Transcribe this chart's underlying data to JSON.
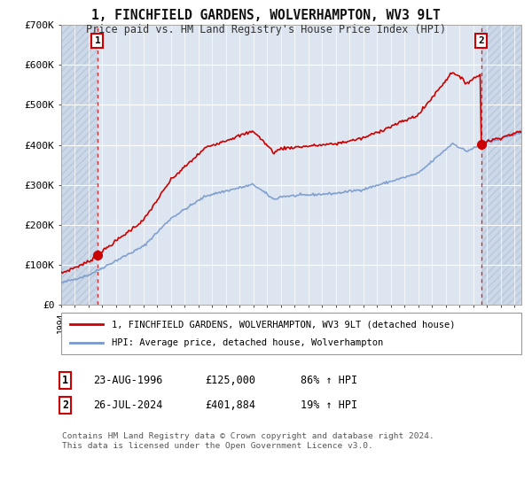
{
  "title_line1": "1, FINCHFIELD GARDENS, WOLVERHAMPTON, WV3 9LT",
  "title_line2": "Price paid vs. HM Land Registry's House Price Index (HPI)",
  "ylim": [
    0,
    700000
  ],
  "yticks": [
    0,
    100000,
    200000,
    300000,
    400000,
    500000,
    600000,
    700000
  ],
  "ytick_labels": [
    "£0",
    "£100K",
    "£200K",
    "£300K",
    "£400K",
    "£500K",
    "£600K",
    "£700K"
  ],
  "hpi_color": "#7799cc",
  "price_color": "#cc0000",
  "sale1_date": 1996.644,
  "sale1_price": 125000,
  "sale2_date": 2024.569,
  "sale2_price": 401884,
  "legend_label1": "1, FINCHFIELD GARDENS, WOLVERHAMPTON, WV3 9LT (detached house)",
  "legend_label2": "HPI: Average price, detached house, Wolverhampton",
  "table_row1_num": "1",
  "table_row1_date": "23-AUG-1996",
  "table_row1_price": "£125,000",
  "table_row1_hpi": "86% ↑ HPI",
  "table_row2_num": "2",
  "table_row2_date": "26-JUL-2024",
  "table_row2_price": "£401,884",
  "table_row2_hpi": "19% ↑ HPI",
  "footnote": "Contains HM Land Registry data © Crown copyright and database right 2024.\nThis data is licensed under the Open Government Licence v3.0.",
  "bg_color": "#ffffff",
  "plot_bg_color": "#dde6f0",
  "hatch_bg_color": "#ccd8e8",
  "grid_color": "#ffffff",
  "xlim_start": 1994,
  "xlim_end": 2027.5
}
